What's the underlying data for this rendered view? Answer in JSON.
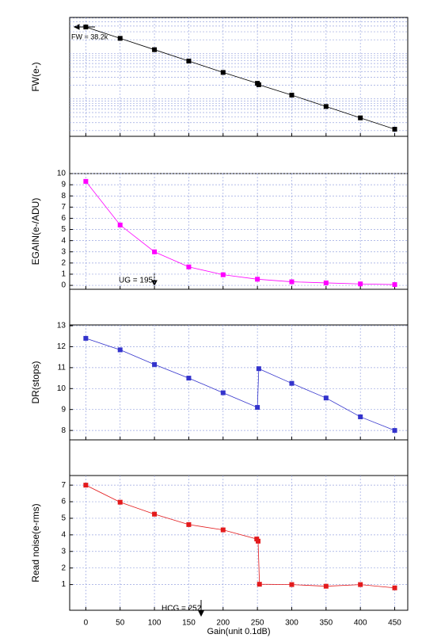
{
  "chart_data": [
    {
      "type": "line",
      "ylabel": "FW(e-)",
      "log_y": true,
      "grid": true,
      "color": "#000000",
      "marker": "square",
      "annotation": "FW = 38.2k",
      "x": [
        0,
        50,
        100,
        150,
        200,
        250,
        252,
        300,
        350,
        400,
        450
      ],
      "values": [
        38200,
        21500,
        12100,
        6800,
        3820,
        2200,
        2050,
        1210,
        680,
        382,
        215
      ],
      "xlim": [
        -23.5,
        469
      ],
      "ylim": [
        150,
        62000
      ]
    },
    {
      "type": "line",
      "ylabel": "EGAIN(e-/ADU)",
      "grid": true,
      "color": "#ff00ff",
      "marker": "square",
      "annotation": "UG = 195",
      "x": [
        0,
        50,
        100,
        150,
        200,
        250,
        300,
        350,
        400,
        450
      ],
      "values": [
        9.3,
        5.4,
        3.0,
        1.65,
        0.95,
        0.55,
        0.32,
        0.22,
        0.13,
        0.07
      ],
      "xlim": [
        -23.5,
        469
      ],
      "ylim": [
        -0.35,
        10
      ],
      "yticks": [
        0,
        1,
        2,
        3,
        4,
        5,
        6,
        7,
        8,
        9,
        10
      ]
    },
    {
      "type": "line",
      "ylabel": "DR(stops)",
      "grid": true,
      "color": "#3333cc",
      "marker": "square",
      "x": [
        0,
        50,
        100,
        150,
        200,
        250,
        252,
        300,
        350,
        400,
        450
      ],
      "values": [
        12.4,
        11.85,
        11.15,
        10.5,
        9.8,
        9.1,
        10.95,
        10.25,
        9.55,
        8.65,
        8.0
      ],
      "xlim": [
        -23.5,
        469
      ],
      "ylim": [
        7.55,
        13.04
      ],
      "yticks": [
        8,
        9,
        10,
        11,
        12,
        13
      ]
    },
    {
      "type": "line",
      "ylabel": "Read noise(e-rms)",
      "xlabel": "Gain(unit 0.1dB)",
      "grid": true,
      "color": "#e31a1c",
      "marker": "square",
      "annotation": "HCG = 252",
      "x": [
        0,
        50,
        100,
        150,
        200,
        249,
        251,
        253,
        300,
        350,
        400,
        450
      ],
      "values": [
        7.0,
        5.97,
        5.25,
        4.62,
        4.3,
        3.75,
        3.62,
        1.02,
        1.0,
        0.9,
        1.0,
        0.8
      ],
      "xlim": [
        -23.5,
        469
      ],
      "ylim": [
        -0.55,
        7.58
      ],
      "yticks": [
        1,
        2,
        3,
        4,
        5,
        6,
        7
      ],
      "xticks": [
        0,
        50,
        100,
        150,
        200,
        250,
        300,
        350,
        400,
        450
      ]
    }
  ]
}
